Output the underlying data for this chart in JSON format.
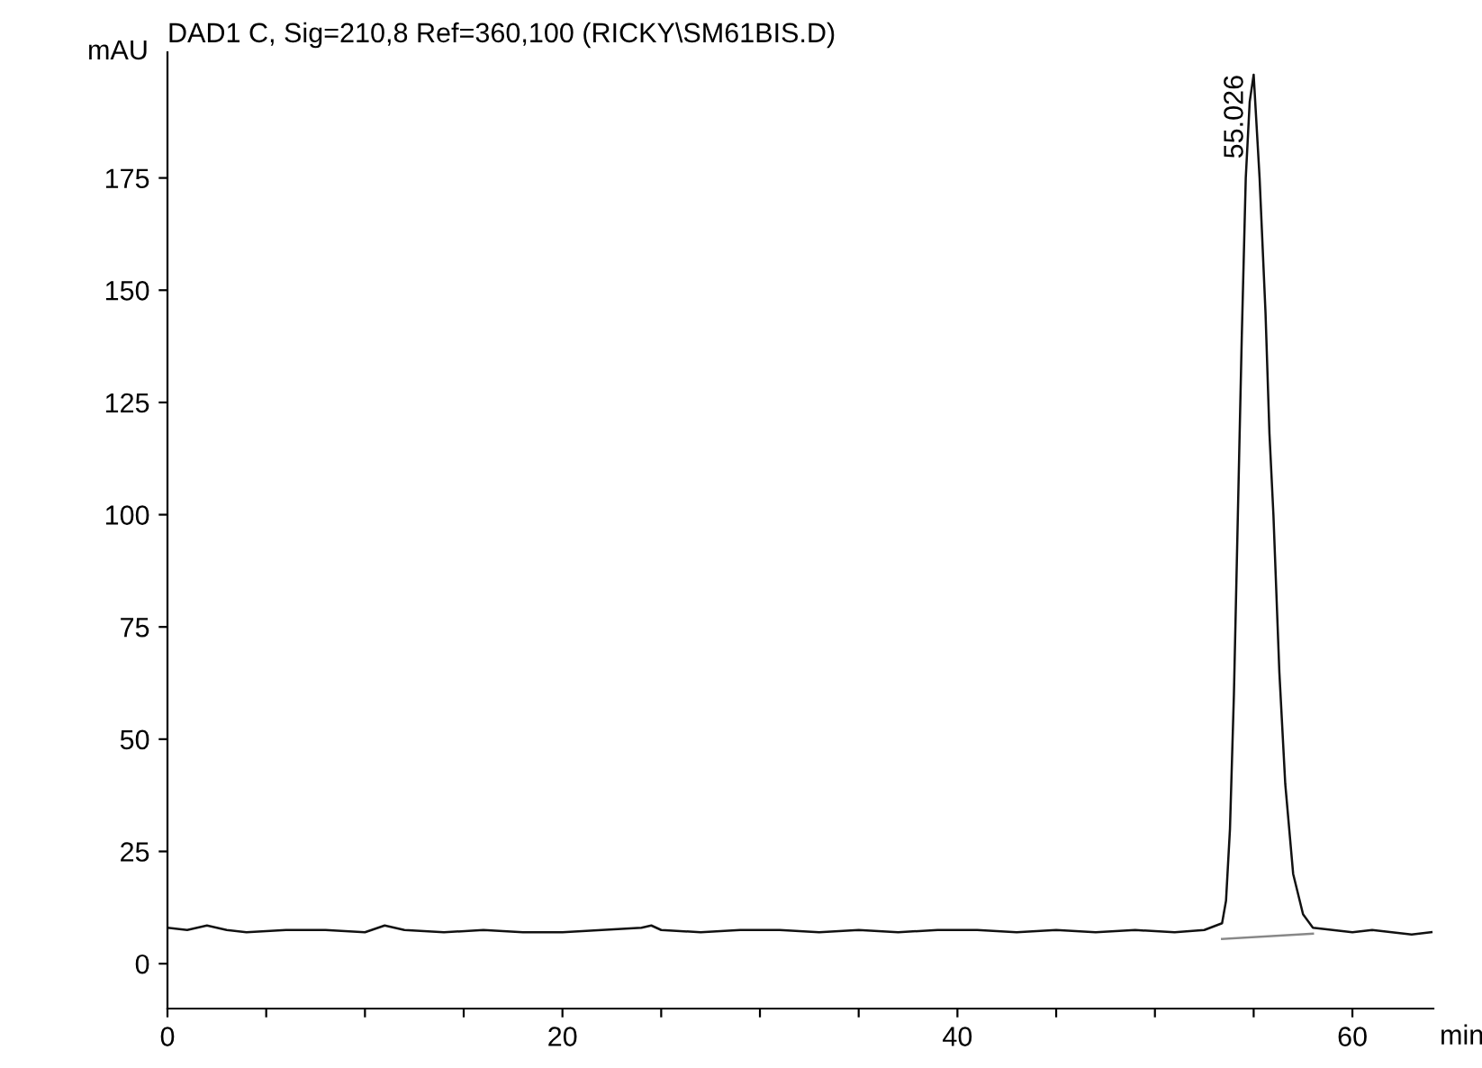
{
  "chart_data": {
    "type": "line",
    "title": "DAD1 C, Sig=210,8 Ref=360,100 (RICKY\\SM61BIS.D)",
    "xlabel": "min",
    "ylabel": "mAU",
    "xlim": [
      0,
      64.1
    ],
    "ylim": [
      -10,
      203
    ],
    "xticks": [
      0,
      {
        "value": 5,
        "label": null
      },
      {
        "value": 10,
        "label": null
      },
      {
        "value": 15,
        "label": null
      },
      20,
      {
        "value": 25,
        "label": null
      },
      {
        "value": 30,
        "label": null
      },
      {
        "value": 35,
        "label": null
      },
      40,
      {
        "value": 45,
        "label": null
      },
      {
        "value": 50,
        "label": null
      },
      {
        "value": 55,
        "label": null
      },
      60
    ],
    "yticks": [
      0,
      25,
      50,
      75,
      100,
      125,
      150,
      175
    ],
    "grid": false,
    "series": [
      {
        "color": "#111111",
        "x": [
          0,
          1,
          2,
          3,
          4,
          6,
          8,
          10,
          11,
          12,
          14,
          16,
          18,
          20,
          22,
          24,
          24.5,
          25,
          27,
          29,
          31,
          33,
          35,
          37,
          39,
          41,
          43,
          45,
          47,
          49,
          51,
          52.5,
          53.4,
          53.6,
          53.8,
          54.0,
          54.2,
          54.4,
          54.6,
          54.8,
          55.0,
          55.3,
          55.6,
          55.8,
          56.0,
          56.3,
          56.6,
          57.0,
          57.5,
          58.0,
          59,
          60,
          61,
          62,
          63,
          64
        ],
        "values": [
          8,
          7.5,
          8.5,
          7.5,
          7,
          7.5,
          7.5,
          7,
          8.5,
          7.5,
          7,
          7.5,
          7,
          7,
          7.5,
          8,
          8.5,
          7.5,
          7,
          7.5,
          7.5,
          7,
          7.5,
          7,
          7.5,
          7.5,
          7,
          7.5,
          7,
          7.5,
          7,
          7.5,
          9,
          14,
          30,
          60,
          100,
          140,
          175,
          192,
          198,
          175,
          145,
          118,
          100,
          65,
          40,
          20,
          11,
          8,
          7.5,
          7,
          7.5,
          7,
          6.5,
          7
        ]
      },
      {
        "color": "#888888",
        "x": [
          53.4,
          58.0
        ],
        "values": [
          5.5,
          6.7
        ]
      }
    ],
    "annotations": [
      {
        "text": "55.026",
        "x": 55.0,
        "y": 198
      }
    ]
  }
}
